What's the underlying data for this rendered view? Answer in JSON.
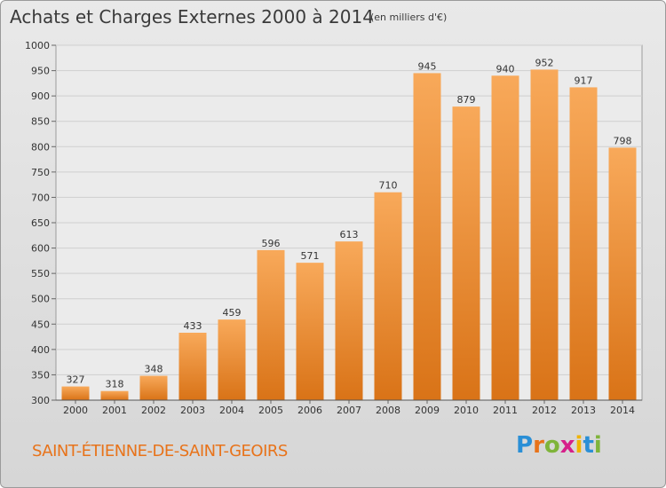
{
  "header": {
    "title": "Achats et Charges Externes 2000 à 2014",
    "subtitle": "(en milliers d'€)"
  },
  "footer": {
    "place": "SAINT-ÉTIENNE-DE-SAINT-GEOIRS",
    "logo": "Proxiti"
  },
  "colors": {
    "bar_top": "#f8a95a",
    "bar_bottom": "#d97317",
    "place_text": "#e8731a",
    "logo_letters": [
      "#2a8fd6",
      "#e8731a",
      "#7fb43a",
      "#d6208a",
      "#f0b400",
      "#2a8fd6",
      "#7fb43a"
    ]
  },
  "chart_data": {
    "type": "bar",
    "title": "Achats et Charges Externes 2000 à 2014",
    "subtitle": "(en milliers d'€)",
    "categories": [
      "2000",
      "2001",
      "2002",
      "2003",
      "2004",
      "2005",
      "2006",
      "2007",
      "2008",
      "2009",
      "2010",
      "2011",
      "2012",
      "2013",
      "2014"
    ],
    "values": [
      327,
      318,
      348,
      433,
      459,
      596,
      571,
      613,
      710,
      945,
      879,
      940,
      952,
      917,
      798
    ],
    "ylim": [
      300,
      1000
    ],
    "yticks": [
      300,
      350,
      400,
      450,
      500,
      550,
      600,
      650,
      700,
      750,
      800,
      850,
      900,
      950,
      1000
    ],
    "grid": true,
    "data_labels": true
  }
}
